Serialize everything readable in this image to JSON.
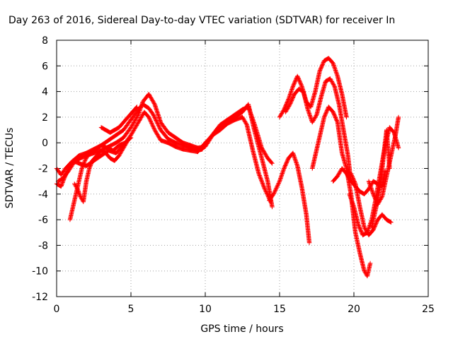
{
  "chart_data": {
    "type": "scatter",
    "title": "Day 263 of 2016, Sidereal Day-to-day VTEC variation (SDTVAR) for receiver In",
    "xlabel": "GPS time / hours",
    "ylabel": "SDTVAR / TECUs",
    "xlim": [
      0,
      25
    ],
    "ylim": [
      -12,
      8
    ],
    "xticks": [
      0,
      5,
      10,
      15,
      20,
      25
    ],
    "yticks": [
      -12,
      -10,
      -8,
      -6,
      -4,
      -2,
      0,
      2,
      4,
      6,
      8
    ],
    "xtick_labels": [
      "0",
      "5",
      "10",
      "15",
      "20",
      "25"
    ],
    "ytick_labels": [
      "-12",
      "-10",
      "-8",
      "-6",
      "-4",
      "-2",
      "0",
      "2",
      "4",
      "6",
      "8"
    ],
    "grid": true,
    "marker": "+",
    "color": "#ff0000",
    "series": [
      {
        "x": [
          0.0,
          0.3,
          0.6,
          1.0,
          1.5,
          2.0,
          2.5,
          3.0,
          3.5,
          4.0,
          4.5,
          5.0,
          5.5,
          5.8,
          6.2,
          6.5,
          7.0,
          7.5,
          8.0,
          8.5,
          9.0,
          9.5,
          9.8,
          10.2,
          10.6,
          11.0,
          11.5,
          12.0,
          12.5,
          12.9,
          13.3,
          13.8,
          14.2,
          14.5
        ],
        "y": [
          -2.0,
          -2.5,
          -2.0,
          -1.5,
          -1.0,
          -0.8,
          -0.5,
          -0.2,
          0.2,
          0.6,
          1.0,
          1.8,
          2.6,
          3.0,
          2.7,
          2.2,
          1.0,
          0.3,
          0.0,
          -0.2,
          -0.4,
          -0.6,
          -0.5,
          0.2,
          0.8,
          1.4,
          1.8,
          2.2,
          2.6,
          2.8,
          1.5,
          -0.4,
          -1.2,
          -1.6
        ]
      },
      {
        "x": [
          0.1,
          0.4,
          0.8,
          1.2,
          1.6,
          2.0,
          2.5,
          3.0,
          3.5,
          4.0,
          4.5,
          5.0,
          5.5,
          5.8,
          6.2,
          6.6,
          7.0,
          7.5,
          8.0,
          8.5,
          9.0,
          9.5,
          10.0,
          10.5,
          11.0,
          11.5,
          12.0,
          12.5,
          12.9,
          13.3,
          13.8,
          14.2,
          14.5
        ],
        "y": [
          -3.0,
          -2.8,
          -2.2,
          -1.5,
          -1.2,
          -1.0,
          -0.8,
          -0.6,
          -0.3,
          0.0,
          0.4,
          1.2,
          2.2,
          3.2,
          3.8,
          3.0,
          1.6,
          0.8,
          0.4,
          0.0,
          -0.2,
          -0.4,
          -0.3,
          0.6,
          1.2,
          1.6,
          2.0,
          2.4,
          3.0,
          1.0,
          -1.2,
          -3.0,
          -5.0
        ]
      },
      {
        "x": [
          0.0,
          0.3,
          0.5,
          0.8,
          1.1,
          1.5,
          2.0,
          2.5,
          3.0,
          3.5,
          4.0,
          4.5,
          5.0,
          5.5,
          5.9,
          6.2,
          6.6,
          7.0,
          7.5,
          8.0,
          8.5,
          9.0,
          9.5,
          10.0,
          10.5,
          11.0,
          11.5,
          12.0,
          12.5,
          12.8,
          13.2,
          13.6,
          14.0,
          14.4
        ],
        "y": [
          -3.2,
          -3.4,
          -2.8,
          -2.0,
          -1.4,
          -1.6,
          -1.8,
          -1.4,
          -1.0,
          -0.6,
          -0.8,
          -0.2,
          0.6,
          1.6,
          2.4,
          2.0,
          1.0,
          0.2,
          0.0,
          -0.3,
          -0.5,
          -0.6,
          -0.7,
          0.0,
          0.6,
          1.0,
          1.5,
          1.8,
          2.0,
          1.4,
          -0.6,
          -2.4,
          -3.6,
          -4.6
        ]
      },
      {
        "x": [
          0.9,
          1.1,
          1.3,
          1.5,
          1.7,
          1.9,
          2.1,
          2.4,
          2.7,
          3.0,
          3.4,
          3.8,
          4.2,
          4.6,
          5.0
        ],
        "y": [
          -6.0,
          -5.0,
          -4.0,
          -3.0,
          -2.0,
          -1.4,
          -1.0,
          -0.7,
          -0.5,
          -0.2,
          -0.4,
          -0.6,
          -0.2,
          0.0,
          0.4
        ]
      },
      {
        "x": [
          1.2,
          1.4,
          1.6,
          1.8,
          2.0,
          2.2,
          2.4,
          2.7,
          3.0,
          3.3,
          3.6,
          3.9,
          4.2,
          4.5,
          4.8
        ],
        "y": [
          -3.2,
          -3.6,
          -4.2,
          -4.6,
          -3.0,
          -2.0,
          -1.4,
          -1.0,
          -0.6,
          -0.8,
          -1.2,
          -1.4,
          -1.0,
          -0.4,
          0.2
        ]
      },
      {
        "x": [
          3.0,
          3.3,
          3.6,
          3.9,
          4.2,
          4.5,
          4.8,
          5.1,
          5.4
        ],
        "y": [
          1.2,
          1.0,
          0.8,
          1.0,
          1.2,
          1.6,
          2.0,
          2.4,
          2.8
        ]
      },
      {
        "x": [
          14.3,
          14.6,
          15.0,
          15.3,
          15.6,
          15.9,
          16.2,
          16.5,
          16.8,
          17.0
        ],
        "y": [
          -4.5,
          -4.0,
          -3.0,
          -2.0,
          -1.2,
          -0.8,
          -1.8,
          -3.5,
          -5.6,
          -7.8
        ]
      },
      {
        "x": [
          15.0,
          15.3,
          15.6,
          15.9,
          16.2,
          16.5,
          16.8,
          17.1,
          17.4,
          17.7,
          18.0,
          18.3,
          18.6,
          18.9,
          19.2,
          19.5
        ],
        "y": [
          2.0,
          2.6,
          3.4,
          4.4,
          5.2,
          4.4,
          3.2,
          2.8,
          4.0,
          5.6,
          6.4,
          6.6,
          6.2,
          5.2,
          3.8,
          2.0
        ]
      },
      {
        "x": [
          15.4,
          15.7,
          16.0,
          16.3,
          16.6,
          16.9,
          17.2,
          17.5,
          17.8,
          18.1,
          18.4,
          18.7,
          19.0,
          19.3,
          19.6,
          19.8
        ],
        "y": [
          2.4,
          3.0,
          3.8,
          4.2,
          4.0,
          2.6,
          1.6,
          2.2,
          3.6,
          4.8,
          5.0,
          4.4,
          3.0,
          1.0,
          -1.0,
          -3.0
        ]
      },
      {
        "x": [
          17.2,
          17.5,
          17.8,
          18.0,
          18.3,
          18.6,
          18.9,
          19.2,
          19.5,
          19.8,
          20.1,
          20.4,
          20.7,
          20.9,
          21.1
        ],
        "y": [
          -2.0,
          -0.5,
          1.0,
          2.0,
          2.8,
          2.4,
          1.6,
          -0.8,
          -2.0,
          -4.0,
          -7.0,
          -8.6,
          -10.0,
          -10.4,
          -9.4
        ]
      },
      {
        "x": [
          18.6,
          18.9,
          19.2,
          19.5,
          19.8,
          20.1,
          20.4,
          20.7,
          21.0,
          21.3,
          21.6,
          21.9,
          22.1
        ],
        "y": [
          -3.0,
          -2.6,
          -2.0,
          -2.4,
          -3.0,
          -3.4,
          -3.8,
          -4.0,
          -3.6,
          -3.0,
          -3.2,
          -3.4,
          -2.2
        ]
      },
      {
        "x": [
          19.8,
          20.1,
          20.4,
          20.7,
          21.0,
          21.3,
          21.6,
          21.9,
          22.2,
          22.5
        ],
        "y": [
          -2.4,
          -3.2,
          -5.0,
          -6.6,
          -7.2,
          -6.8,
          -6.0,
          -5.6,
          -6.0,
          -6.2
        ]
      },
      {
        "x": [
          19.7,
          20.0,
          20.3,
          20.6,
          20.9,
          21.2,
          21.5,
          21.8,
          22.1,
          22.4,
          22.7,
          23.0
        ],
        "y": [
          -4.0,
          -5.0,
          -6.4,
          -7.2,
          -7.0,
          -6.0,
          -4.2,
          -2.2,
          -0.2,
          1.2,
          0.8,
          -0.4
        ]
      },
      {
        "x": [
          21.0,
          21.3,
          21.6,
          21.9,
          22.2,
          22.5,
          22.8,
          23.0
        ],
        "y": [
          -3.0,
          -4.0,
          -4.8,
          -4.2,
          -2.6,
          -1.0,
          0.6,
          2.0
        ]
      },
      {
        "x": [
          21.2,
          21.5,
          21.8,
          22.0,
          22.2,
          22.4
        ],
        "y": [
          -6.6,
          -5.0,
          -3.2,
          -1.0,
          1.0,
          -2.0
        ]
      }
    ]
  }
}
